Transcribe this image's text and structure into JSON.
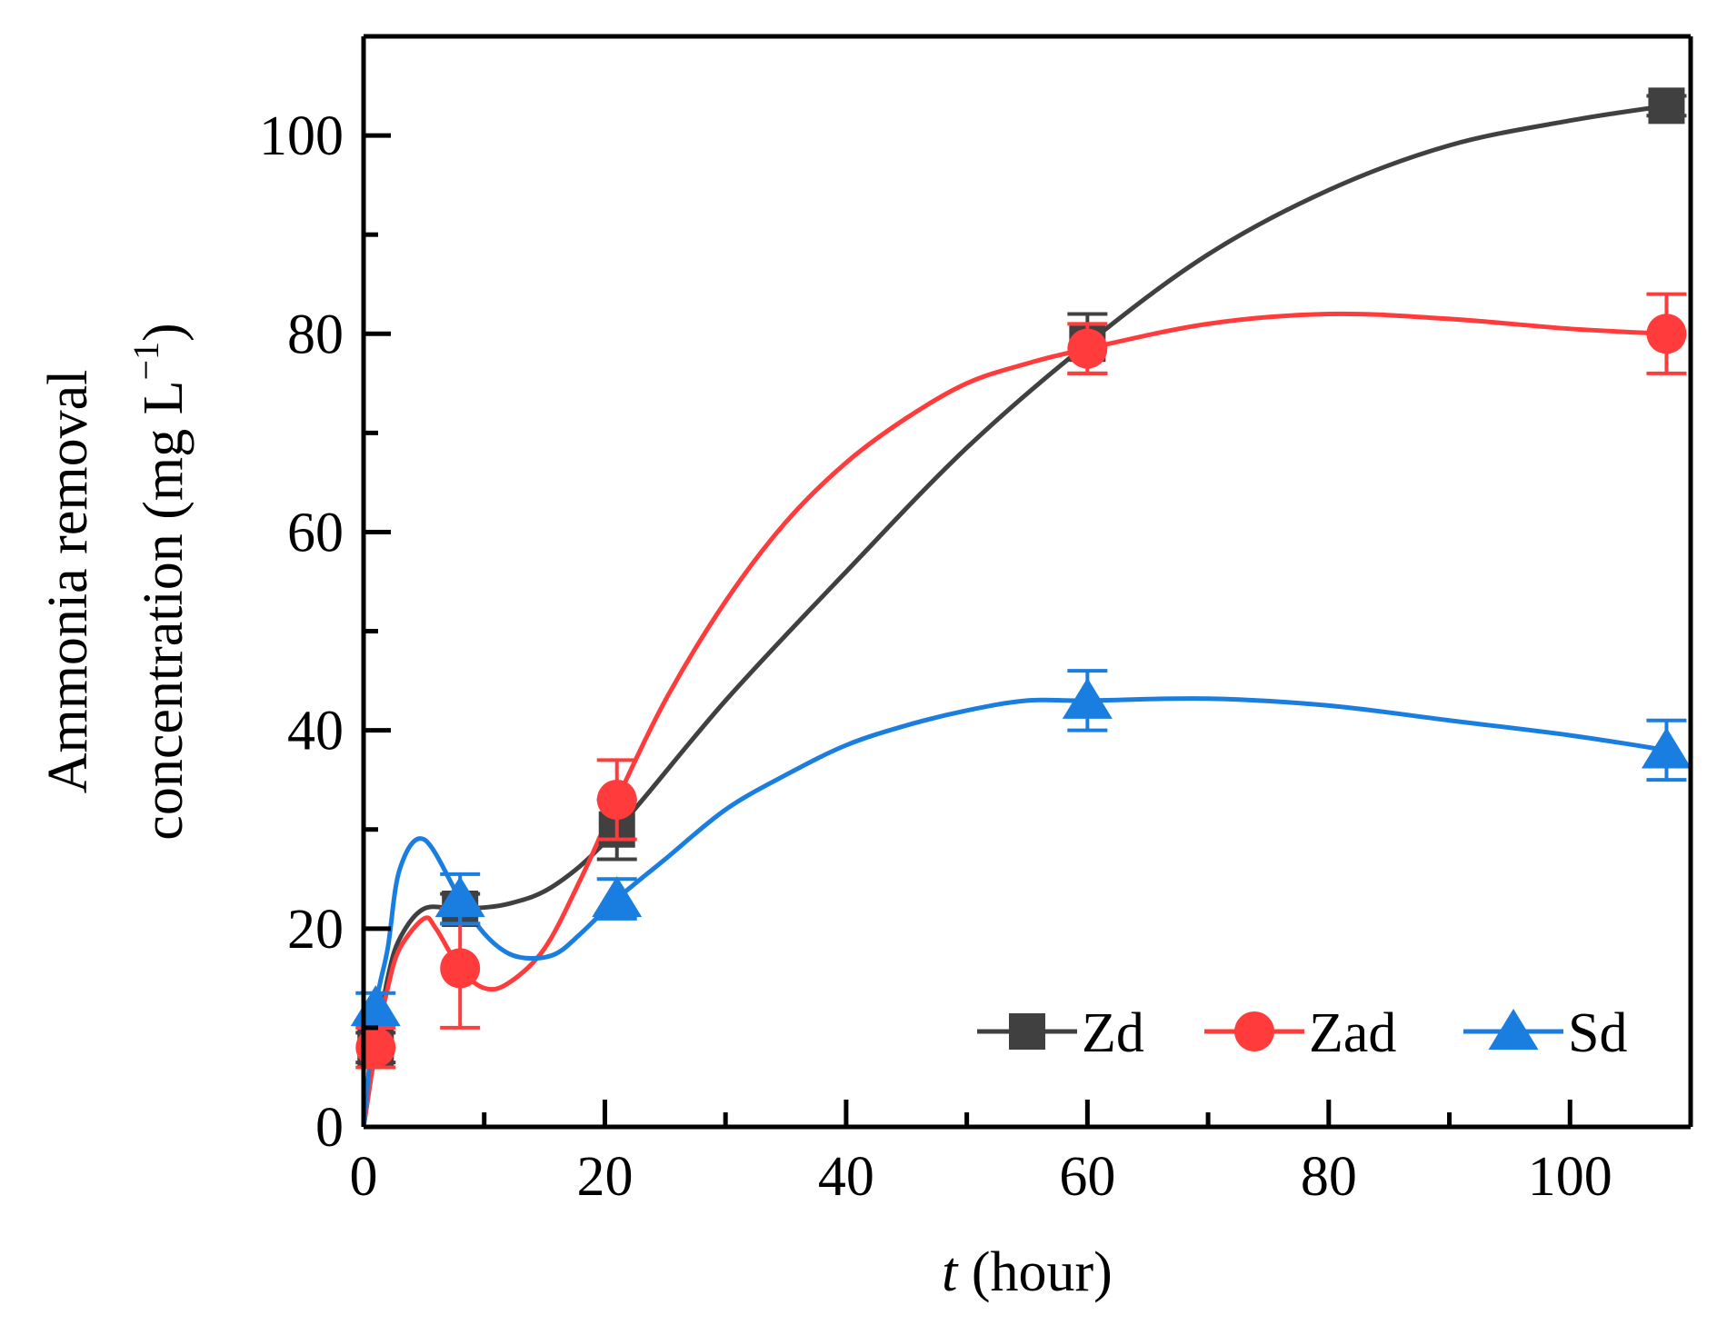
{
  "chart_data": {
    "type": "line",
    "title": "",
    "xlabel": {
      "italic_part": "t",
      "rest": " (hour)"
    },
    "ylabel": {
      "line1": "Ammonia removal",
      "line2": "concentration (mg L",
      "line2_superscript": "−1",
      "line2_suffix": ")"
    },
    "xlim": [
      0,
      110
    ],
    "ylim": [
      0,
      110
    ],
    "x_ticks": [
      0,
      20,
      40,
      60,
      80,
      100
    ],
    "x_tick_labels": [
      "0",
      "20",
      "40",
      "60",
      "80",
      "100"
    ],
    "x_minor_ticks": [
      10,
      30,
      50,
      70,
      90,
      110
    ],
    "y_ticks": [
      0,
      20,
      40,
      60,
      80,
      100
    ],
    "y_tick_labels": [
      "0",
      "20",
      "40",
      "60",
      "80",
      "100"
    ],
    "y_minor_ticks": [
      10,
      30,
      50,
      70,
      90,
      110
    ],
    "grid": false,
    "legend_position": "bottom-right",
    "series": [
      {
        "name": "Zd",
        "color": "#404040",
        "marker": "square",
        "points": [
          {
            "x": 1,
            "y": 8,
            "err": 1.5
          },
          {
            "x": 8,
            "y": 22,
            "err": 1.5
          },
          {
            "x": 21,
            "y": 30,
            "err": 3
          },
          {
            "x": 60,
            "y": 79,
            "err": 3
          },
          {
            "x": 108,
            "y": 103,
            "err": 1
          }
        ],
        "curve": [
          [
            0,
            0
          ],
          [
            1,
            8
          ],
          [
            2,
            15
          ],
          [
            3,
            19
          ],
          [
            5,
            22
          ],
          [
            8,
            22
          ],
          [
            12,
            22.5
          ],
          [
            16,
            24.5
          ],
          [
            21,
            30
          ],
          [
            30,
            43
          ],
          [
            40,
            56
          ],
          [
            50,
            68.5
          ],
          [
            60,
            79
          ],
          [
            70,
            88
          ],
          [
            80,
            94.5
          ],
          [
            90,
            99
          ],
          [
            100,
            101.5
          ],
          [
            108,
            103
          ]
        ]
      },
      {
        "name": "Zad",
        "color": "#ff3b3b",
        "marker": "circle",
        "points": [
          {
            "x": 1,
            "y": 8,
            "err": 2
          },
          {
            "x": 8,
            "y": 16,
            "err": 6
          },
          {
            "x": 21,
            "y": 33,
            "err": 4
          },
          {
            "x": 60,
            "y": 78.5,
            "err": 2.5
          },
          {
            "x": 108,
            "y": 80,
            "err": 4
          }
        ],
        "curve": [
          [
            0,
            0
          ],
          [
            1,
            8
          ],
          [
            2,
            14
          ],
          [
            3,
            18
          ],
          [
            5,
            21
          ],
          [
            6,
            20
          ],
          [
            8,
            16
          ],
          [
            10,
            14
          ],
          [
            12,
            14.5
          ],
          [
            15,
            18
          ],
          [
            18,
            25
          ],
          [
            21,
            33
          ],
          [
            25,
            43
          ],
          [
            30,
            53
          ],
          [
            35,
            61
          ],
          [
            40,
            67
          ],
          [
            45,
            71.5
          ],
          [
            50,
            75
          ],
          [
            55,
            77
          ],
          [
            60,
            78.5
          ],
          [
            70,
            81
          ],
          [
            80,
            82
          ],
          [
            90,
            81.5
          ],
          [
            100,
            80.5
          ],
          [
            108,
            80
          ]
        ]
      },
      {
        "name": "Sd",
        "color": "#1a7de0",
        "marker": "triangle",
        "points": [
          {
            "x": 1,
            "y": 12,
            "err": 1.5
          },
          {
            "x": 8,
            "y": 23,
            "err": 2.5
          },
          {
            "x": 21,
            "y": 23,
            "err": 2
          },
          {
            "x": 60,
            "y": 43,
            "err": 3
          },
          {
            "x": 108,
            "y": 38,
            "err": 3
          }
        ],
        "curve": [
          [
            0,
            0
          ],
          [
            1,
            12
          ],
          [
            2,
            18
          ],
          [
            3,
            26
          ],
          [
            5,
            29
          ],
          [
            8,
            23
          ],
          [
            10,
            19.5
          ],
          [
            12,
            17.5
          ],
          [
            14,
            17
          ],
          [
            16,
            17.5
          ],
          [
            18,
            19.5
          ],
          [
            21,
            23
          ],
          [
            25,
            27
          ],
          [
            30,
            32
          ],
          [
            35,
            35.5
          ],
          [
            40,
            38.5
          ],
          [
            45,
            40.5
          ],
          [
            50,
            42
          ],
          [
            55,
            43
          ],
          [
            60,
            43
          ],
          [
            70,
            43.2
          ],
          [
            80,
            42.5
          ],
          [
            90,
            41
          ],
          [
            100,
            39.5
          ],
          [
            108,
            38
          ]
        ]
      }
    ]
  }
}
